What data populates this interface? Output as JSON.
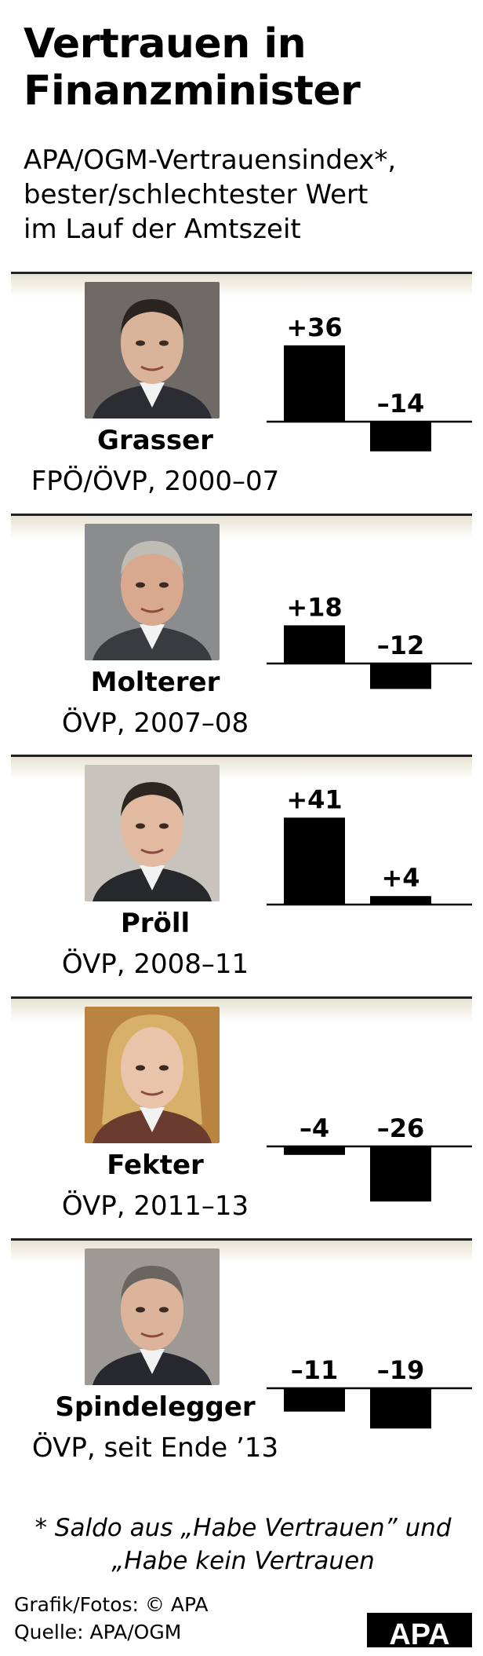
{
  "title_line1": "Vertrauen in",
  "title_line2": "Finanzminister",
  "subtitle_line1": "APA/OGM-Vertrauensindex*,",
  "subtitle_line2": "bester/schlechtester Wert",
  "subtitle_line3": "im Lauf der Amtszeit",
  "footnote_line1": "* Saldo aus „Habe Vertrauen” und",
  "footnote_line2": "„Habe kein Vertrauen",
  "credit_line1": "Grafik/Fotos: © APA",
  "credit_line2": "Quelle: APA/OGM",
  "logo": "APA",
  "colors": {
    "bar": "#000000",
    "panel_header": "#e6e1d2",
    "separator": "#222222"
  },
  "chart_data": {
    "type": "bar",
    "value_labels": [
      [
        "+36",
        "–14"
      ],
      [
        "+18",
        "–12"
      ],
      [
        "+41",
        "+4"
      ],
      [
        "–4",
        "–26"
      ],
      [
        "–11",
        "–19"
      ]
    ],
    "ministers": [
      {
        "name": "Grasser",
        "party": "FPÖ/ÖVP, 2000–07",
        "values": [
          36,
          -14
        ]
      },
      {
        "name": "Molterer",
        "party": "ÖVP, 2007–08",
        "values": [
          18,
          -12
        ]
      },
      {
        "name": "Pröll",
        "party": "ÖVP, 2008–11",
        "values": [
          41,
          4
        ]
      },
      {
        "name": "Fekter",
        "party": "ÖVP, 2011–13",
        "values": [
          -4,
          -26
        ]
      },
      {
        "name": "Spindelegger",
        "party": "ÖVP, seit  Ende ’13",
        "values": [
          -11,
          -19
        ]
      }
    ]
  }
}
